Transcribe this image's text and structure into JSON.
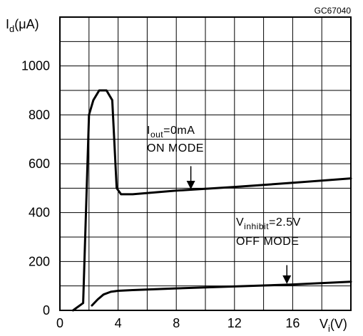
{
  "figure_id": "GC67040",
  "chart_data": {
    "type": "line",
    "ylabel": {
      "main": "I",
      "sub": "d",
      "unit": "(μA)"
    },
    "xlabel": {
      "main": "V",
      "sub": "i",
      "unit": "(V)"
    },
    "xlim": [
      0,
      20
    ],
    "ylim": [
      0,
      1200
    ],
    "x_ticks": [
      0,
      4,
      8,
      12,
      16
    ],
    "y_ticks": [
      0,
      200,
      400,
      600,
      800,
      1000
    ],
    "x_grid_step": 2,
    "y_grid_step": 100,
    "grid": true,
    "series": [
      {
        "name": "ON MODE",
        "x": [
          0.9,
          1.6,
          2.0,
          2.3,
          2.7,
          3.2,
          3.6,
          3.9,
          4.2,
          5,
          8,
          12,
          16,
          20
        ],
        "y": [
          0,
          30,
          800,
          860,
          900,
          900,
          860,
          500,
          475,
          475,
          490,
          505,
          522,
          540
        ]
      },
      {
        "name": "OFF MODE",
        "x": [
          2.2,
          2.6,
          3.0,
          3.5,
          4.0,
          5,
          8,
          12,
          16,
          20
        ],
        "y": [
          20,
          45,
          65,
          76,
          80,
          83,
          90,
          98,
          106,
          117
        ]
      }
    ],
    "annotations": [
      {
        "id": "on",
        "line1_main": "I",
        "line1_sub": "out",
        "line1_rest": "=0mA",
        "line2": "ON MODE",
        "arrow_x": 9,
        "arrow_y_from": 590,
        "arrow_y_to": 495
      },
      {
        "id": "off",
        "line1_main": "V",
        "line1_sub": "inhibit",
        "line1_rest": "=2.5V",
        "line2": "OFF MODE",
        "arrow_x": 15.6,
        "arrow_y_from": 185,
        "arrow_y_to": 108
      }
    ]
  }
}
